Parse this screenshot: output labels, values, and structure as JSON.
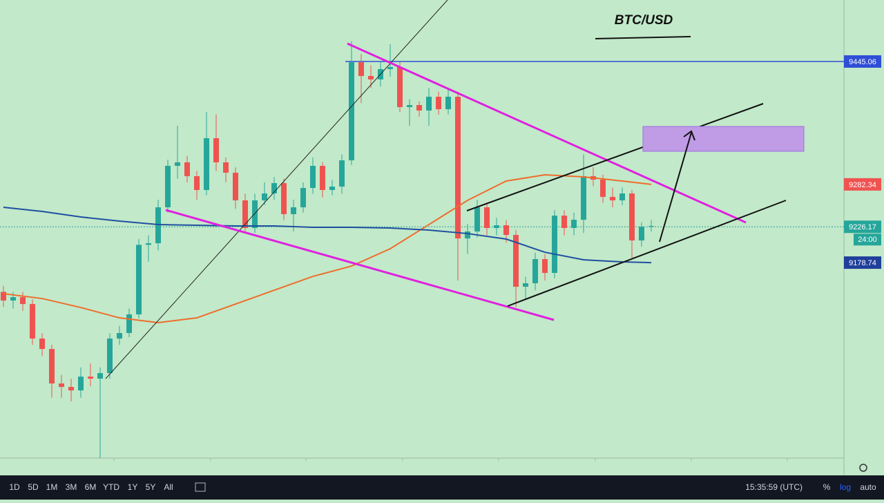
{
  "chart_data": {
    "type": "candlestick",
    "title": "BTC/USD",
    "ylim": [
      8919.9,
      9526.5
    ],
    "up_color": "#26a69a",
    "down_color": "#ef5350",
    "open": [
      9140,
      9128.5,
      9133.0,
      9123.9,
      9078.2,
      9064.4,
      9018.7,
      9014.1,
      9009.5,
      9027.8,
      9025.1,
      9032.4,
      9078.2,
      9085.5,
      9110.2,
      9202.3,
      9204.4,
      9252.0,
      9306.9,
      9311.5,
      9293.2,
      9274.9,
      9343.5,
      9311.5,
      9297.8,
      9261.2,
      9224.6,
      9261.2,
      9270.3,
      9284.0,
      9242.9,
      9252.0,
      9277.6,
      9306.9,
      9274.9,
      9279.4,
      9314.2,
      9444.1,
      9425.9,
      9421.3,
      9435.0,
      9437.7,
      9384.7,
      9387.4,
      9380.1,
      9398.4,
      9381.9,
      9398.4,
      9210.8,
      9220.0,
      9252.0,
      9224.6,
      9228.2,
      9215.4,
      9146.8,
      9151.4,
      9183.4,
      9165.1,
      9241.0,
      9224.6,
      9235.5,
      9293.2,
      9288.6,
      9265.8,
      9261.2,
      9270.3,
      9208.1,
      9226.4
    ],
    "close": [
      9128.5,
      9133.0,
      9123.9,
      9078.2,
      9064.4,
      9018.7,
      9014.1,
      9009.5,
      9027.8,
      9025.1,
      9032.4,
      9078.2,
      9085.5,
      9110.2,
      9202.3,
      9204.4,
      9252.0,
      9306.9,
      9311.5,
      9293.2,
      9274.9,
      9343.5,
      9311.5,
      9297.8,
      9261.2,
      9224.6,
      9261.2,
      9270.3,
      9284.0,
      9242.9,
      9252.0,
      9277.6,
      9306.9,
      9274.9,
      9279.4,
      9314.2,
      9444.1,
      9425.9,
      9421.3,
      9435.0,
      9437.7,
      9384.7,
      9387.4,
      9380.1,
      9398.4,
      9381.9,
      9398.4,
      9210.8,
      9220.0,
      9252.0,
      9224.6,
      9228.2,
      9215.4,
      9146.8,
      9151.4,
      9183.4,
      9165.1,
      9241.0,
      9224.6,
      9235.5,
      9293.2,
      9288.6,
      9265.8,
      9261.2,
      9270.3,
      9208.1,
      9226.4,
      9227.3
    ],
    "high": [
      9148,
      9140,
      9140,
      9130,
      9085,
      9070,
      9030,
      9025,
      9040,
      9045,
      9040,
      9085,
      9095,
      9118,
      9210,
      9215,
      9262,
      9315,
      9360,
      9320,
      9300,
      9378,
      9375,
      9318,
      9305,
      9270,
      9270,
      9285,
      9292,
      9290,
      9262,
      9285,
      9318,
      9312,
      9288,
      9322,
      9472,
      9455,
      9440,
      9445,
      9468,
      9445,
      9395,
      9392,
      9410,
      9405,
      9408,
      9405,
      9230,
      9262,
      9258,
      9238,
      9235,
      9222,
      9160,
      9192,
      9190,
      9248,
      9248,
      9245,
      9322,
      9305,
      9295,
      9278,
      9278,
      9275,
      9232,
      9235
    ],
    "low": [
      9120,
      9118,
      9115,
      9070,
      9055,
      9000,
      9000,
      8995,
      9000,
      9015,
      8920,
      9025,
      9070,
      9080,
      9105,
      9180,
      9195,
      9245,
      9290,
      9285,
      9262,
      9268,
      9300,
      9285,
      9250,
      9218,
      9218,
      9255,
      9262,
      9235,
      9220,
      9245,
      9270,
      9265,
      9268,
      9270,
      9308,
      9390,
      9410,
      9412,
      9425,
      9378,
      9360,
      9372,
      9360,
      9375,
      9375,
      9155,
      9190,
      9212,
      9215,
      9215,
      9205,
      9120,
      9130,
      9142,
      9155,
      9158,
      9215,
      9215,
      9218,
      9280,
      9258,
      9252,
      9255,
      9185,
      9200,
      9220
    ],
    "moving_averages": [
      {
        "color": "#ef6c2c",
        "x": [
          0,
          4,
          8,
          12,
          16,
          20,
          24,
          28,
          32,
          36,
          40,
          44,
          48,
          52,
          56,
          60,
          64,
          67
        ],
        "values": [
          9137.6,
          9131.2,
          9119.3,
          9105.6,
          9099.2,
          9105.6,
          9123.9,
          9142.2,
          9160.5,
          9174.2,
          9197.1,
          9229.1,
          9261.2,
          9286.8,
          9295.0,
          9292.3,
          9286.8,
          9282.34
        ]
      },
      {
        "color": "#1f4fa0",
        "x": [
          0,
          4,
          8,
          12,
          16,
          20,
          24,
          28,
          32,
          36,
          40,
          44,
          48,
          52,
          56,
          60,
          64,
          67
        ],
        "values": [
          9252.0,
          9246.5,
          9239.2,
          9233.7,
          9229.1,
          9228.2,
          9227.3,
          9227.3,
          9225.5,
          9225.5,
          9224.6,
          9221.8,
          9217.2,
          9209.9,
          9192.5,
          9182.5,
          9179.7,
          9178.74
        ]
      }
    ],
    "price_labels": [
      {
        "value": 9445.06,
        "color": "#2f4fd8",
        "line": "solid"
      },
      {
        "value": 9282.34,
        "color": "#ef5350"
      },
      {
        "value": 9226.17,
        "color": "#26a69a",
        "line": "dashed",
        "sub": "24:00"
      },
      {
        "value": 9178.74,
        "color": "#1f3f9a"
      }
    ]
  },
  "toolbar": {
    "ranges": [
      "1D",
      "5D",
      "1M",
      "3M",
      "6M",
      "YTD",
      "1Y",
      "5Y",
      "All"
    ],
    "time": "15:35:59 (UTC)",
    "options": [
      "%",
      "log",
      "auto"
    ]
  }
}
